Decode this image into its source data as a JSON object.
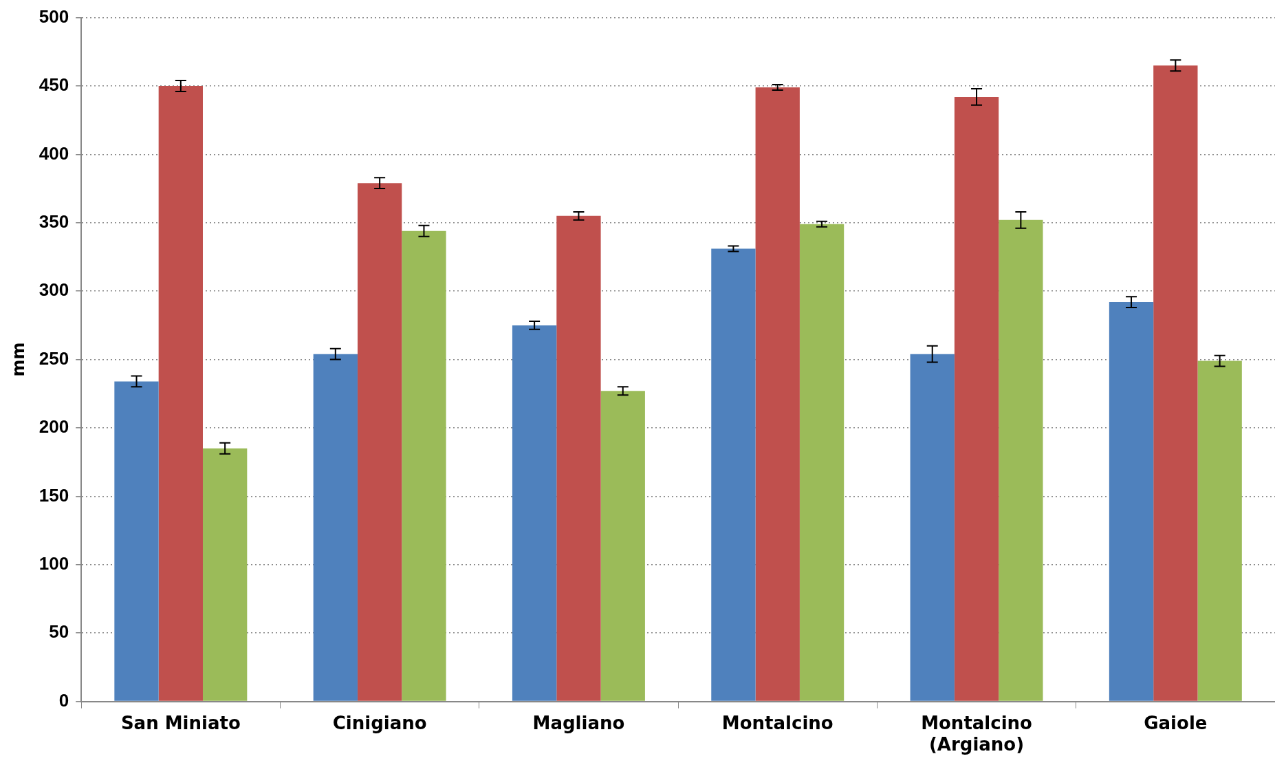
{
  "chart_data": {
    "type": "bar",
    "ylabel": "mm",
    "categories": [
      "San Miniato",
      "Cinigiano",
      "Magliano",
      "Montalcino",
      "Montalcino (Argiano)",
      "Gaiole"
    ],
    "series": [
      {
        "color": "#4f81bd",
        "values": [
          234,
          254,
          275,
          331,
          254,
          292
        ],
        "errors": [
          4,
          4,
          3,
          2,
          6,
          4
        ]
      },
      {
        "color": "#c0504d",
        "values": [
          450,
          379,
          355,
          449,
          442,
          465
        ],
        "errors": [
          4,
          4,
          3,
          2,
          6,
          4
        ]
      },
      {
        "color": "#9bbb59",
        "values": [
          185,
          344,
          227,
          349,
          352,
          249
        ],
        "errors": [
          4,
          4,
          3,
          2,
          6,
          4
        ]
      }
    ],
    "ylim": [
      0,
      500
    ],
    "yticks": [
      0,
      50,
      100,
      150,
      200,
      250,
      300,
      350,
      400,
      450,
      500
    ],
    "grid": "y",
    "legend": false
  }
}
